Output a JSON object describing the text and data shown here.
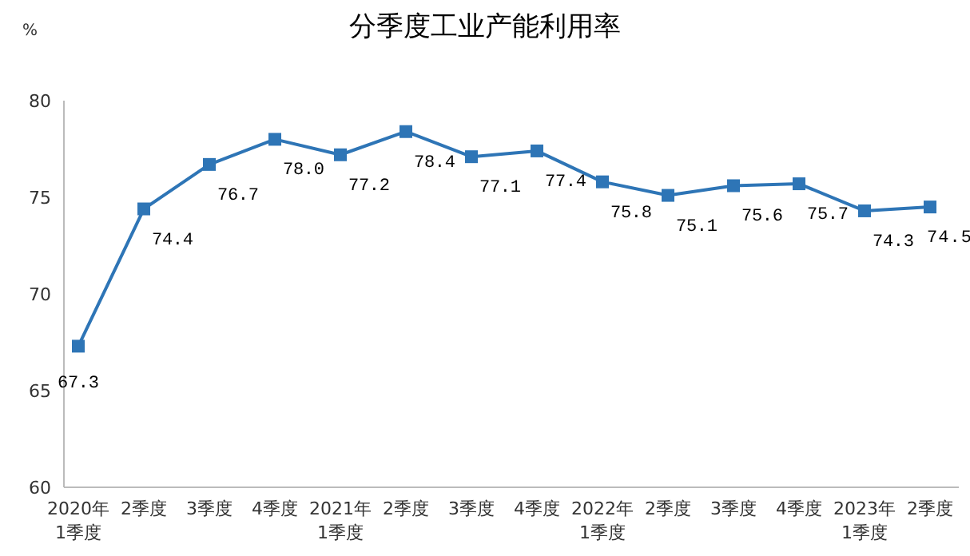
{
  "chart_data": {
    "type": "line",
    "title": "分季度工业产能利用率",
    "ylabel": "%",
    "categories": [
      "2020年\n1季度",
      "2季度",
      "3季度",
      "4季度",
      "2021年\n1季度",
      "2季度",
      "3季度",
      "4季度",
      "2022年\n1季度",
      "2季度",
      "3季度",
      "4季度",
      "2023年\n1季度",
      "2季度"
    ],
    "series": [
      {
        "color": "#2e75b6",
        "values": [
          67.3,
          74.4,
          76.7,
          78.0,
          77.2,
          78.4,
          77.1,
          77.4,
          75.8,
          75.1,
          75.6,
          75.7,
          74.3,
          74.5
        ],
        "value_labels": [
          "67.3",
          "74.4",
          "76.7",
          "78.0",
          "77.2",
          "78.4",
          "77.1",
          "77.4",
          "75.8",
          "75.1",
          "75.6",
          "75.7",
          "74.3",
          "74.5"
        ]
      }
    ],
    "ylim": [
      60,
      80
    ],
    "yticks": [
      60,
      65,
      70,
      75,
      80
    ],
    "marker": "square",
    "line_style": "solid"
  }
}
